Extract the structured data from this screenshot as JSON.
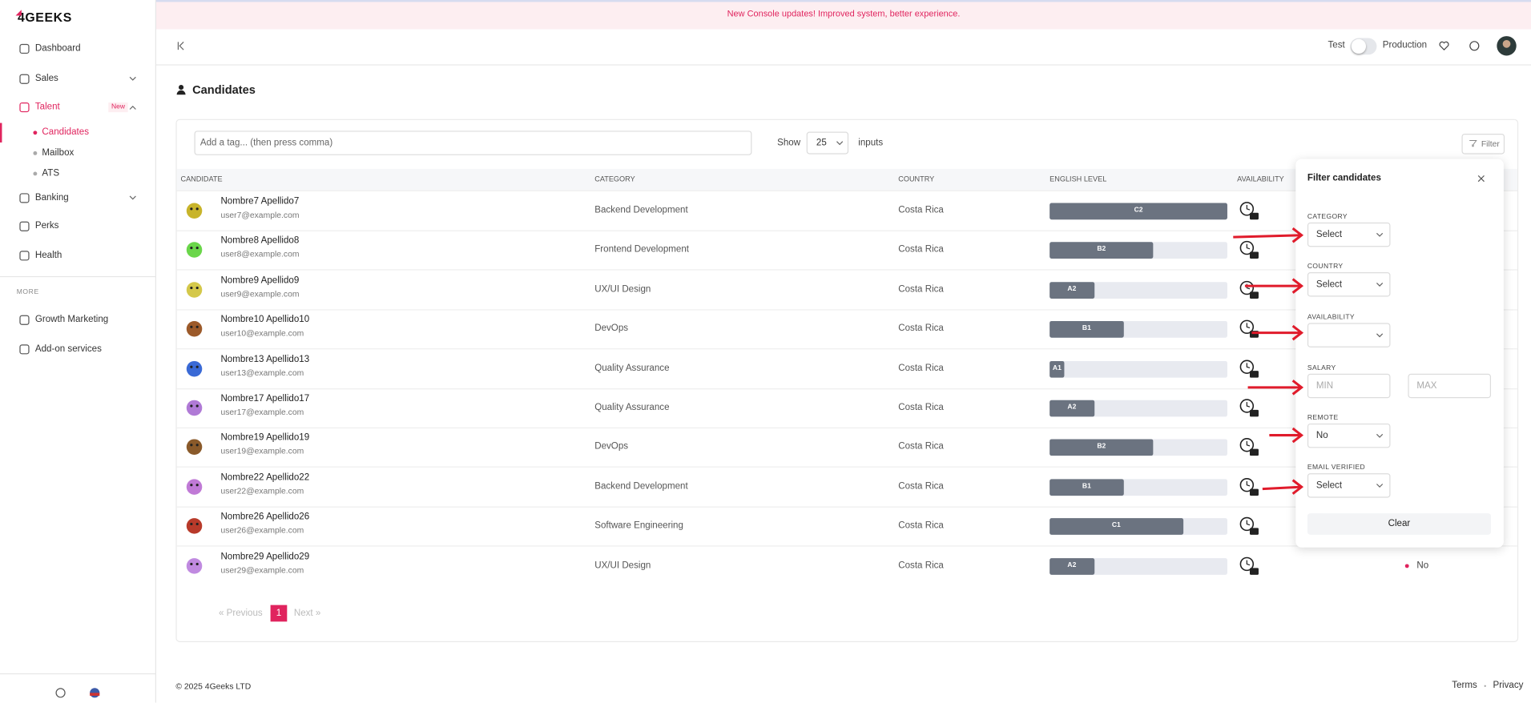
{
  "banner": "New Console updates! Improved system, better experience.",
  "sidebar": {
    "logo": "4GEEKS",
    "items": [
      "Dashboard",
      "Sales",
      "Talent"
    ],
    "talent_badge": "New",
    "talent_items": [
      "Candidates",
      "Mailbox",
      "ATS"
    ],
    "items_after": [
      "Banking",
      "Perks",
      "Health"
    ],
    "more_label": "MORE",
    "more_items": [
      "Growth Marketing",
      "Add-on services"
    ]
  },
  "header": {
    "toggle_left": "Test",
    "toggle_right": "Production"
  },
  "page": {
    "title": "Candidates"
  },
  "toolbar": {
    "tag_placeholder": "Add a tag... (then press comma)",
    "show_label": "Show",
    "show_value": 25,
    "inputs_label": "inputs",
    "filter_button": "Filter"
  },
  "table": {
    "columns": [
      "CANDIDATE",
      "CATEGORY",
      "COUNTRY",
      "ENGLISH LEVEL",
      "AVAILABILITY"
    ],
    "rows": [
      {
        "name": "Nombre7 Apellido7",
        "email": "user7@example.com",
        "category": "Backend Development",
        "country": "Costa Rica",
        "english_level": "C2"
      },
      {
        "name": "Nombre8 Apellido8",
        "email": "user8@example.com",
        "category": "Frontend Development",
        "country": "Costa Rica",
        "english_level": "B2"
      },
      {
        "name": "Nombre9 Apellido9",
        "email": "user9@example.com",
        "category": "UX/UI Design",
        "country": "Costa Rica",
        "english_level": "A2"
      },
      {
        "name": "Nombre10 Apellido10",
        "email": "user10@example.com",
        "category": "DevOps",
        "country": "Costa Rica",
        "english_level": "B1"
      },
      {
        "name": "Nombre13 Apellido13",
        "email": "user13@example.com",
        "category": "Quality Assurance",
        "country": "Costa Rica",
        "english_level": "A1"
      },
      {
        "name": "Nombre17 Apellido17",
        "email": "user17@example.com",
        "category": "Quality Assurance",
        "country": "Costa Rica",
        "english_level": "A2"
      },
      {
        "name": "Nombre19 Apellido19",
        "email": "user19@example.com",
        "category": "DevOps",
        "country": "Costa Rica",
        "english_level": "B2"
      },
      {
        "name": "Nombre22 Apellido22",
        "email": "user22@example.com",
        "category": "Backend Development",
        "country": "Costa Rica",
        "english_level": "B1"
      },
      {
        "name": "Nombre26 Apellido26",
        "email": "user26@example.com",
        "category": "Software Engineering",
        "country": "Costa Rica",
        "english_level": "C1"
      },
      {
        "name": "Nombre29 Apellido29",
        "email": "user29@example.com",
        "category": "UX/UI Design",
        "country": "Costa Rica",
        "english_level": "A2",
        "status": "No"
      }
    ]
  },
  "pagination": {
    "previous": "« Previous",
    "current": 1,
    "next": "Next »"
  },
  "filter_panel": {
    "title": "Filter candidates",
    "fields": [
      {
        "label": "CATEGORY",
        "value": "Select"
      },
      {
        "label": "COUNTRY",
        "value": "Select"
      },
      {
        "label": "AVAILABILITY"
      },
      {
        "label": "SALARY",
        "min": "MIN",
        "max": "MAX"
      },
      {
        "label": "REMOTE",
        "value": "No"
      },
      {
        "label": "EMAIL VERIFIED",
        "value": "Select"
      }
    ],
    "clear": "Clear"
  },
  "footer": {
    "copyright": "© 2025 4Geeks LTD",
    "links": [
      "Terms",
      "Privacy"
    ]
  }
}
